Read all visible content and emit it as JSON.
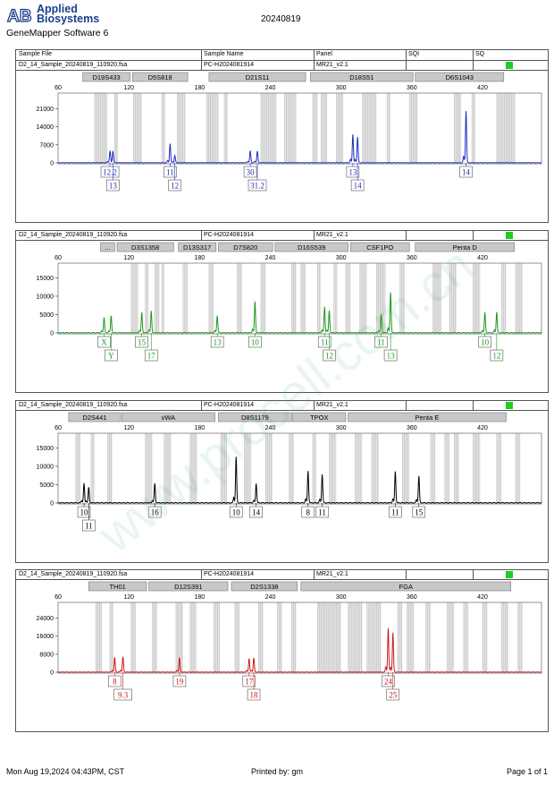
{
  "header": {
    "brand_line1": "Applied",
    "brand_line2": "Biosystems",
    "logo_mark": "AB",
    "software": "GeneMapper Software 6",
    "run_date": "20240819"
  },
  "columns": {
    "sample_file": "Sample File",
    "sample_name": "Sample Name",
    "panel": "Panel",
    "sqi": "SQI",
    "sq": "SQ"
  },
  "watermark": "www.procell.com.cn",
  "footer": {
    "datetime": "Mon Aug 19,2024 04:43PM, CST",
    "printed_by": "Printed by: gm",
    "page": "Page 1 of 1"
  },
  "chart_data": [
    {
      "type": "line",
      "color": "#1f2fbf",
      "sample_file": "D2_14_Sample_20240819_110920.fsa",
      "sample_name": "PC-H2024081914",
      "panel": "MR21_v2.1",
      "x_ticks": [
        60,
        120,
        180,
        240,
        300,
        360,
        420
      ],
      "y_ticks": [
        0,
        7000,
        14000,
        21000
      ],
      "ylim": [
        0,
        27000
      ],
      "xlim": [
        60,
        470
      ],
      "markers": [
        {
          "name": "D19S433",
          "start": 81,
          "end": 121
        },
        {
          "name": "D5S818",
          "start": 123,
          "end": 170
        },
        {
          "name": "D21S11",
          "start": 188,
          "end": 270
        },
        {
          "name": "D18S51",
          "start": 274,
          "end": 361
        },
        {
          "name": "D6S1043",
          "start": 363,
          "end": 438
        }
      ],
      "peaks": [
        {
          "x": 104,
          "h": 4300,
          "label": "12.2",
          "row": 1
        },
        {
          "x": 106.5,
          "h": 4600,
          "label": "13",
          "row": 2
        },
        {
          "x": 155,
          "h": 7400,
          "label": "11",
          "row": 1
        },
        {
          "x": 159,
          "h": 2800,
          "label": "12",
          "row": 2
        },
        {
          "x": 223,
          "h": 4600,
          "label": "30",
          "row": 1
        },
        {
          "x": 229,
          "h": 4500,
          "label": "31.2",
          "row": 2
        },
        {
          "x": 310,
          "h": 11000,
          "label": "13",
          "row": 1
        },
        {
          "x": 314,
          "h": 10000,
          "label": "14",
          "row": 2
        },
        {
          "x": 406,
          "h": 20000,
          "label": "14",
          "row": 1
        }
      ],
      "bins": [
        [
          91,
          102
        ],
        [
          108,
          111
        ],
        [
          124,
          131
        ],
        [
          148,
          151
        ],
        [
          161,
          168
        ],
        [
          186,
          196
        ],
        [
          201,
          204
        ],
        [
          232,
          245
        ],
        [
          252,
          262
        ],
        [
          276,
          280
        ],
        [
          283,
          288
        ],
        [
          296,
          302
        ],
        [
          318,
          330
        ],
        [
          339,
          342
        ],
        [
          358,
          365
        ],
        [
          396,
          402
        ],
        [
          411,
          414
        ],
        [
          432,
          448
        ]
      ]
    },
    {
      "type": "line",
      "color": "#1e9a1e",
      "sample_file": "D2_14_Sample_20240819_110920.fsa",
      "sample_name": "PC-H2024081914",
      "panel": "MR21_v2.1",
      "x_ticks": [
        60,
        120,
        180,
        240,
        300,
        360,
        420
      ],
      "y_ticks": [
        0,
        5000,
        10000,
        15000
      ],
      "ylim": [
        0,
        19000
      ],
      "xlim": [
        60,
        470
      ],
      "markers": [
        {
          "name": "...",
          "start": 96,
          "end": 108
        },
        {
          "name": "D3S1358",
          "start": 110,
          "end": 158
        },
        {
          "name": "D13S317",
          "start": 162,
          "end": 194
        },
        {
          "name": "D7S820",
          "start": 196,
          "end": 242
        },
        {
          "name": "D16S539",
          "start": 244,
          "end": 306
        },
        {
          "name": "CSF1PO",
          "start": 308,
          "end": 358
        },
        {
          "name": "Penta D",
          "start": 363,
          "end": 447
        }
      ],
      "peaks": [
        {
          "x": 99,
          "h": 4200,
          "label": "X",
          "row": 1
        },
        {
          "x": 105,
          "h": 4600,
          "label": "Y",
          "row": 2
        },
        {
          "x": 131,
          "h": 5500,
          "label": "15",
          "row": 1
        },
        {
          "x": 139,
          "h": 6000,
          "label": "17",
          "row": 2
        },
        {
          "x": 195,
          "h": 4700,
          "label": "13",
          "row": 1
        },
        {
          "x": 227,
          "h": 8500,
          "label": "10",
          "row": 1
        },
        {
          "x": 286,
          "h": 7000,
          "label": "11",
          "row": 1
        },
        {
          "x": 290,
          "h": 6000,
          "label": "12",
          "row": 2
        },
        {
          "x": 334,
          "h": 5000,
          "label": "11",
          "row": 1
        },
        {
          "x": 342,
          "h": 11000,
          "label": "13",
          "row": 2
        },
        {
          "x": 422,
          "h": 5500,
          "label": "10",
          "row": 1
        },
        {
          "x": 432,
          "h": 5700,
          "label": "12",
          "row": 2
        }
      ],
      "bins": [
        [
          122,
          128
        ],
        [
          134,
          137
        ],
        [
          142,
          146
        ],
        [
          148,
          150
        ],
        [
          166,
          170
        ],
        [
          188,
          192
        ],
        [
          212,
          216
        ],
        [
          232,
          236
        ],
        [
          258,
          262
        ],
        [
          266,
          270
        ],
        [
          280,
          283
        ],
        [
          294,
          297
        ],
        [
          304,
          308
        ],
        [
          316,
          322
        ],
        [
          330,
          338
        ],
        [
          350,
          354
        ],
        [
          378,
          385
        ],
        [
          392,
          398
        ],
        [
          412,
          418
        ],
        [
          436,
          440
        ],
        [
          448,
          454
        ]
      ]
    },
    {
      "type": "line",
      "color": "#000000",
      "sample_file": "D2_14_Sample_20240819_110920.fsa",
      "sample_name": "PC-H2024081914",
      "panel": "MR21_v2.1",
      "x_ticks": [
        60,
        120,
        180,
        240,
        300,
        360,
        420
      ],
      "y_ticks": [
        0,
        5000,
        10000,
        15000
      ],
      "ylim": [
        0,
        19000
      ],
      "xlim": [
        60,
        470
      ],
      "markers": [
        {
          "name": "D2S441",
          "start": 69,
          "end": 113
        },
        {
          "name": "vWA",
          "start": 114,
          "end": 193
        },
        {
          "name": "D8S1179",
          "start": 196,
          "end": 258
        },
        {
          "name": "TPOX",
          "start": 259,
          "end": 304
        },
        {
          "name": "Penta E",
          "start": 306,
          "end": 440
        }
      ],
      "peaks": [
        {
          "x": 82,
          "h": 5300,
          "label": "10",
          "row": 1
        },
        {
          "x": 86,
          "h": 4200,
          "label": "11",
          "row": 2
        },
        {
          "x": 142,
          "h": 5300,
          "label": "16",
          "row": 1
        },
        {
          "x": 211,
          "h": 12500,
          "label": "10",
          "row": 1
        },
        {
          "x": 228,
          "h": 5300,
          "label": "14",
          "row": 1
        },
        {
          "x": 272,
          "h": 8700,
          "label": "8",
          "row": 1
        },
        {
          "x": 284,
          "h": 7800,
          "label": "11",
          "row": 1
        },
        {
          "x": 346,
          "h": 8600,
          "label": "11",
          "row": 1
        },
        {
          "x": 366,
          "h": 7300,
          "label": "15",
          "row": 1
        }
      ],
      "bins": [
        [
          75,
          79
        ],
        [
          88,
          91
        ],
        [
          102,
          106
        ],
        [
          134,
          140
        ],
        [
          150,
          156
        ],
        [
          172,
          178
        ],
        [
          198,
          203
        ],
        [
          218,
          224
        ],
        [
          236,
          242
        ],
        [
          256,
          260
        ],
        [
          276,
          279
        ],
        [
          290,
          296
        ],
        [
          312,
          318
        ],
        [
          326,
          332
        ],
        [
          352,
          358
        ],
        [
          376,
          380
        ],
        [
          388,
          392
        ],
        [
          396,
          400
        ],
        [
          412,
          418
        ],
        [
          432,
          436
        ],
        [
          448,
          452
        ]
      ]
    },
    {
      "type": "line",
      "color": "#cc1a1a",
      "sample_file": "D2_14_Sample_20240819_110920.fsa",
      "sample_name": "PC-H2024081914",
      "panel": "MR21_v2.1",
      "x_ticks": [
        60,
        120,
        180,
        240,
        300,
        360,
        420
      ],
      "y_ticks": [
        0,
        8000,
        16000,
        24000
      ],
      "ylim": [
        0,
        31000
      ],
      "xlim": [
        60,
        470
      ],
      "markers": [
        {
          "name": "TH01",
          "start": 86,
          "end": 135
        },
        {
          "name": "D12S391",
          "start": 137,
          "end": 204
        },
        {
          "name": "D2S1338",
          "start": 207,
          "end": 263
        },
        {
          "name": "FGA",
          "start": 266,
          "end": 444
        }
      ],
      "peaks": [
        {
          "x": 108,
          "h": 6500,
          "label": "8",
          "row": 1
        },
        {
          "x": 115,
          "h": 6800,
          "label": "9.3",
          "row": 2
        },
        {
          "x": 163,
          "h": 6500,
          "label": "19",
          "row": 1
        },
        {
          "x": 222,
          "h": 6000,
          "label": "17",
          "row": 1
        },
        {
          "x": 226,
          "h": 6200,
          "label": "18",
          "row": 2
        },
        {
          "x": 340,
          "h": 19500,
          "label": "24",
          "row": 1
        },
        {
          "x": 344,
          "h": 17500,
          "label": "25",
          "row": 2
        }
      ],
      "bins": [
        [
          92,
          97
        ],
        [
          104,
          107
        ],
        [
          122,
          126
        ],
        [
          140,
          144
        ],
        [
          160,
          166
        ],
        [
          172,
          177
        ],
        [
          192,
          197
        ],
        [
          210,
          214
        ],
        [
          230,
          234
        ],
        [
          246,
          250
        ],
        [
          258,
          262
        ],
        [
          280,
          300
        ],
        [
          306,
          318
        ],
        [
          322,
          334
        ],
        [
          348,
          352
        ],
        [
          356,
          362
        ],
        [
          372,
          376
        ],
        [
          390,
          396
        ],
        [
          404,
          408
        ],
        [
          420,
          424
        ],
        [
          436,
          442
        ],
        [
          450,
          454
        ]
      ]
    }
  ]
}
